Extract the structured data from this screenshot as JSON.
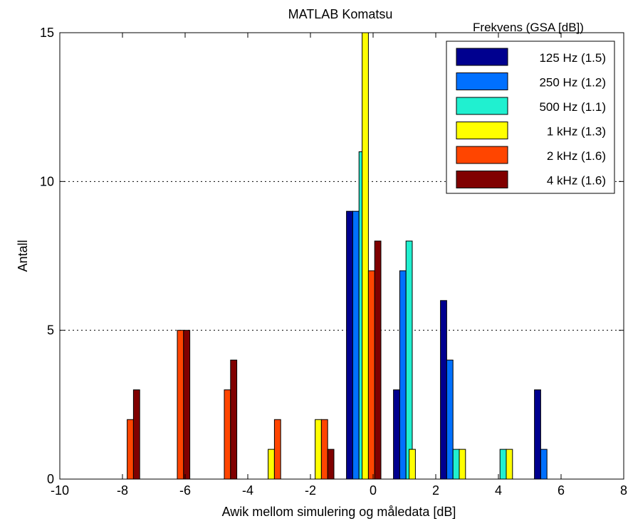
{
  "chart_data": {
    "type": "bar",
    "title": "MATLAB Komatsu",
    "xlabel": "Awik mellom simulering og måledata [dB]",
    "ylabel": "Antall",
    "xlim": [
      -10,
      8
    ],
    "ylim": [
      0,
      15
    ],
    "xticks": [
      "-10",
      "-8",
      "-6",
      "-4",
      "-2",
      "0",
      "2",
      "4",
      "6",
      "8"
    ],
    "yticks": [
      "0",
      "5",
      "10",
      "15"
    ],
    "grid": "y dotted",
    "legend_placement": "top-right",
    "legend_title": "Frekvens (GSA [dB])",
    "bin_centers": [
      -8,
      -6,
      -4,
      -2,
      0,
      2,
      4,
      6
    ],
    "bin_step": 2,
    "series": [
      {
        "name": "125 Hz (1.5)",
        "color": "#00008F",
        "points": [
          [
            -0.75,
            9
          ],
          [
            0.75,
            3
          ],
          [
            2.25,
            6
          ],
          [
            5.25,
            3
          ]
        ]
      },
      {
        "name": "250 Hz (1.2)",
        "color": "#0070FF",
        "points": [
          [
            -0.55,
            9
          ],
          [
            0.95,
            7
          ],
          [
            2.45,
            4
          ],
          [
            5.45,
            1
          ]
        ]
      },
      {
        "name": "500 Hz (1.1)",
        "color": "#20F0D0",
        "points": [
          [
            -0.35,
            11
          ],
          [
            1.15,
            8
          ],
          [
            2.65,
            1
          ],
          [
            4.15,
            1
          ]
        ]
      },
      {
        "name": "1 kHz (1.3)",
        "color": "#FFFF00",
        "points": [
          [
            -3.25,
            1
          ],
          [
            -1.75,
            2
          ],
          [
            -0.25,
            15
          ],
          [
            1.25,
            1
          ],
          [
            2.85,
            1
          ],
          [
            4.35,
            1
          ]
        ]
      },
      {
        "name": "2 kHz (1.6)",
        "color": "#FF4500",
        "points": [
          [
            -7.75,
            2
          ],
          [
            -6.15,
            5
          ],
          [
            -4.65,
            3
          ],
          [
            -3.05,
            2
          ],
          [
            -1.55,
            2
          ],
          [
            -0.05,
            7
          ]
        ]
      },
      {
        "name": "4 kHz (1.6)",
        "color": "#800000",
        "points": [
          [
            -7.55,
            3
          ],
          [
            -5.95,
            5
          ],
          [
            -4.45,
            4
          ],
          [
            -1.35,
            1
          ],
          [
            0.15,
            8
          ]
        ]
      }
    ]
  }
}
